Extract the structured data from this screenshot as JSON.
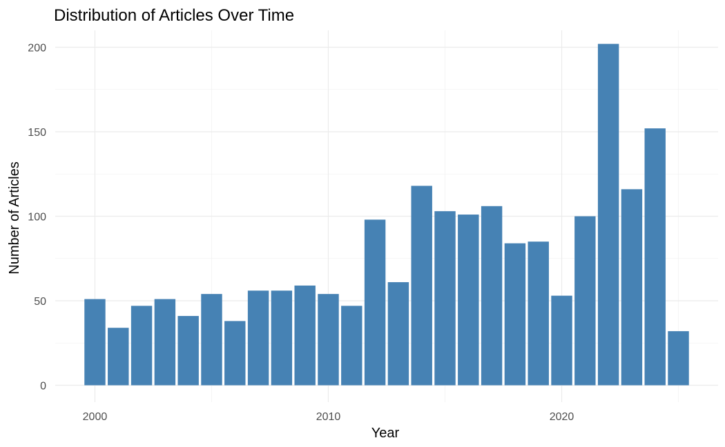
{
  "chart_data": {
    "type": "bar",
    "title": "Distribution of Articles Over Time",
    "xlabel": "Year",
    "ylabel": "Number of Articles",
    "x": [
      2000,
      2001,
      2002,
      2003,
      2004,
      2005,
      2006,
      2007,
      2008,
      2009,
      2010,
      2011,
      2012,
      2013,
      2014,
      2015,
      2016,
      2017,
      2018,
      2019,
      2020,
      2021,
      2022,
      2023,
      2024,
      2025
    ],
    "values": [
      51,
      34,
      47,
      51,
      41,
      54,
      38,
      56,
      56,
      59,
      54,
      47,
      98,
      61,
      118,
      103,
      101,
      106,
      84,
      85,
      53,
      100,
      202,
      116,
      152,
      32
    ],
    "xlim": [
      1998.3,
      2026.7
    ],
    "ylim": [
      -10,
      210
    ],
    "x_ticks": [
      2000,
      2010,
      2020
    ],
    "x_minor_ticks": [
      1995,
      2005,
      2015,
      2025
    ],
    "y_ticks": [
      0,
      50,
      100,
      150,
      200
    ],
    "y_minor_ticks": [
      25,
      75,
      125,
      175
    ],
    "bar_color": "#4682B4",
    "grid": true,
    "legend": "none"
  }
}
